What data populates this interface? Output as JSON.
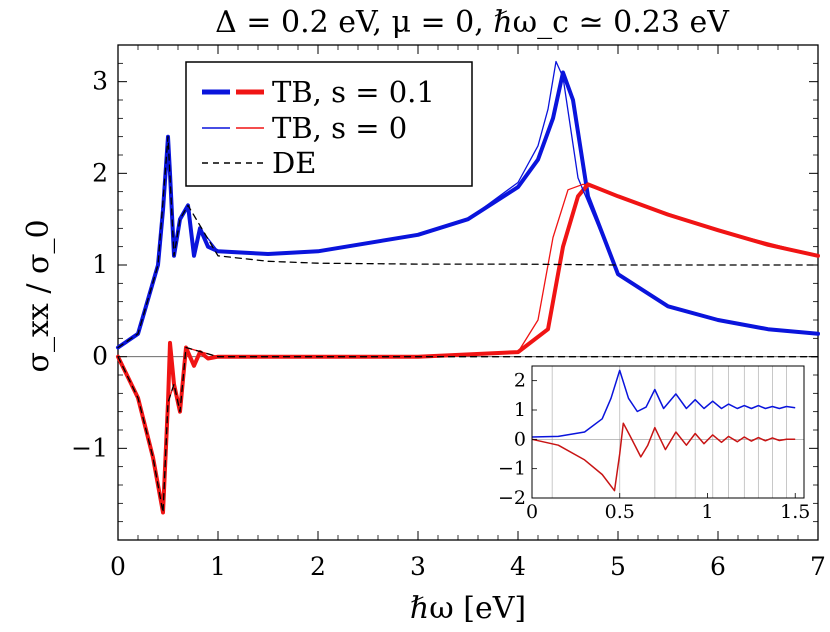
{
  "chart_data": {
    "type": "line",
    "title": "Δ = 0.2 eV,  μ = 0,  ℏω_c ≃ 0.23 eV",
    "xlabel": "ℏω [eV]",
    "ylabel": "σ_xx / σ_0",
    "xlim": [
      0,
      7
    ],
    "ylim": [
      -2.0,
      3.4
    ],
    "xticks": [
      "0",
      "1",
      "2",
      "3",
      "4",
      "5",
      "6",
      "7"
    ],
    "yticks": [
      "-1",
      "0",
      "1",
      "2",
      "3"
    ],
    "legend_position": "top-left",
    "legend": [
      {
        "label": "TB,  s = 0.1",
        "style": "thick",
        "colors": [
          "#0a14dc",
          "#f01414"
        ]
      },
      {
        "label": "TB,  s = 0",
        "style": "thin",
        "colors": [
          "#0a14dc",
          "#f01414"
        ]
      },
      {
        "label": "DE",
        "style": "dashed",
        "colors": [
          "#000000"
        ]
      }
    ],
    "series": [
      {
        "name": "TB, s=0.1 (Re)",
        "color": "#0a14dc",
        "x": [
          0,
          0.2,
          0.4,
          0.45,
          0.5,
          0.52,
          0.56,
          0.62,
          0.7,
          0.76,
          0.82,
          0.9,
          1.0,
          1.5,
          2.0,
          3.0,
          3.5,
          4.0,
          4.2,
          4.35,
          4.45,
          4.55,
          4.7,
          5.0,
          5.5,
          6.0,
          6.5,
          7.0
        ],
        "y": [
          0.1,
          0.25,
          1.0,
          1.6,
          2.4,
          2.0,
          1.1,
          1.5,
          1.65,
          1.1,
          1.4,
          1.2,
          1.15,
          1.12,
          1.15,
          1.33,
          1.5,
          1.85,
          2.15,
          2.6,
          3.1,
          2.8,
          1.75,
          0.9,
          0.55,
          0.4,
          0.3,
          0.25
        ]
      },
      {
        "name": "TB, s=0.1 (Im)",
        "color": "#f01414",
        "x": [
          0,
          0.2,
          0.35,
          0.45,
          0.5,
          0.52,
          0.56,
          0.62,
          0.68,
          0.76,
          0.82,
          0.9,
          1.0,
          1.5,
          2.0,
          3.0,
          4.0,
          4.3,
          4.45,
          4.6,
          4.7,
          5.0,
          5.5,
          6.0,
          6.5,
          7.0
        ],
        "y": [
          0.0,
          -0.45,
          -1.1,
          -1.7,
          -0.5,
          0.15,
          -0.3,
          -0.6,
          0.1,
          -0.1,
          0.05,
          -0.02,
          0.0,
          0.0,
          0.0,
          0.0,
          0.05,
          0.3,
          1.2,
          1.75,
          1.88,
          1.75,
          1.55,
          1.38,
          1.22,
          1.1
        ]
      },
      {
        "name": "TB, s=0 (Re)",
        "color": "#0a14dc",
        "x": [
          0,
          0.2,
          0.4,
          0.45,
          0.5,
          0.56,
          0.62,
          0.7,
          0.76,
          0.82,
          1.0,
          1.5,
          2.0,
          3.0,
          3.5,
          4.0,
          4.2,
          4.3,
          4.38,
          4.45,
          4.6,
          5.0,
          5.5,
          6.0,
          6.5,
          7.0
        ],
        "y": [
          0.1,
          0.25,
          1.0,
          1.6,
          2.4,
          1.1,
          1.5,
          1.65,
          1.1,
          1.4,
          1.15,
          1.12,
          1.14,
          1.33,
          1.5,
          1.9,
          2.3,
          2.7,
          3.22,
          3.05,
          1.95,
          0.9,
          0.55,
          0.4,
          0.3,
          0.25
        ]
      },
      {
        "name": "TB, s=0 (Im)",
        "color": "#f01414",
        "x": [
          0,
          0.2,
          0.35,
          0.45,
          0.5,
          0.56,
          0.62,
          0.68,
          1.0,
          2.0,
          3.0,
          4.0,
          4.2,
          4.35,
          4.5,
          4.65,
          5.0,
          6.0,
          7.0
        ],
        "y": [
          0.0,
          -0.45,
          -1.1,
          -1.7,
          -0.5,
          -0.3,
          -0.6,
          0.1,
          0.0,
          0.0,
          0.0,
          0.05,
          0.4,
          1.3,
          1.82,
          1.88,
          1.75,
          1.38,
          1.1
        ]
      },
      {
        "name": "DE (Re)",
        "color": "#000000",
        "dashed": true,
        "x": [
          0,
          0.2,
          0.4,
          0.5,
          0.56,
          0.62,
          0.7,
          1.0,
          1.5,
          2.0,
          3.0,
          4.0,
          5.0,
          6.0,
          7.0
        ],
        "y": [
          0.1,
          0.25,
          1.0,
          2.4,
          1.1,
          1.5,
          1.65,
          1.1,
          1.04,
          1.02,
          1.01,
          1.01,
          1.0,
          1.0,
          1.0
        ]
      },
      {
        "name": "DE (Im)",
        "color": "#000000",
        "dashed": true,
        "x": [
          0,
          0.2,
          0.35,
          0.45,
          0.5,
          0.56,
          0.62,
          0.68,
          1.0,
          2.0,
          4.0,
          7.0
        ],
        "y": [
          0.0,
          -0.45,
          -1.1,
          -1.7,
          -0.5,
          -0.3,
          -0.6,
          0.1,
          0.0,
          0.0,
          0.0,
          0.0
        ]
      }
    ],
    "inset": {
      "xlim": [
        0,
        1.55
      ],
      "ylim": [
        -2.0,
        2.5
      ],
      "xticks": [
        "0",
        "0.5",
        "1",
        "1.5"
      ],
      "yticks": [
        "-2",
        "-1",
        "0",
        "1",
        "2"
      ],
      "vertical_gridlines_x": [
        0.115,
        0.5,
        0.7,
        0.82,
        0.93,
        1.03,
        1.12,
        1.21,
        1.29,
        1.37,
        1.45
      ],
      "series": [
        {
          "name": "blue",
          "color": "#0a14dc",
          "x": [
            0,
            0.15,
            0.3,
            0.4,
            0.45,
            0.5,
            0.55,
            0.6,
            0.65,
            0.7,
            0.75,
            0.82,
            0.88,
            0.93,
            0.98,
            1.03,
            1.08,
            1.12,
            1.17,
            1.21,
            1.25,
            1.29,
            1.33,
            1.37,
            1.41,
            1.45,
            1.5
          ],
          "y": [
            0.08,
            0.1,
            0.25,
            0.7,
            1.4,
            2.35,
            1.4,
            0.95,
            1.1,
            1.7,
            1.05,
            1.55,
            1.05,
            1.35,
            1.05,
            1.3,
            1.05,
            1.2,
            1.05,
            1.15,
            1.05,
            1.15,
            1.05,
            1.12,
            1.05,
            1.12,
            1.08
          ]
        },
        {
          "name": "red",
          "color": "#c81414",
          "x": [
            0,
            0.15,
            0.3,
            0.4,
            0.47,
            0.5,
            0.52,
            0.56,
            0.62,
            0.66,
            0.7,
            0.76,
            0.82,
            0.88,
            0.93,
            0.98,
            1.03,
            1.08,
            1.12,
            1.17,
            1.21,
            1.25,
            1.29,
            1.33,
            1.37,
            1.41,
            1.45,
            1.5
          ],
          "y": [
            0.0,
            -0.2,
            -0.7,
            -1.2,
            -1.75,
            -0.5,
            0.55,
            0.1,
            -0.6,
            -0.2,
            0.4,
            -0.35,
            0.25,
            -0.2,
            0.2,
            -0.15,
            0.15,
            -0.1,
            0.1,
            -0.08,
            0.08,
            -0.06,
            0.06,
            -0.05,
            0.05,
            -0.04,
            0.0,
            0.0
          ]
        }
      ]
    }
  }
}
